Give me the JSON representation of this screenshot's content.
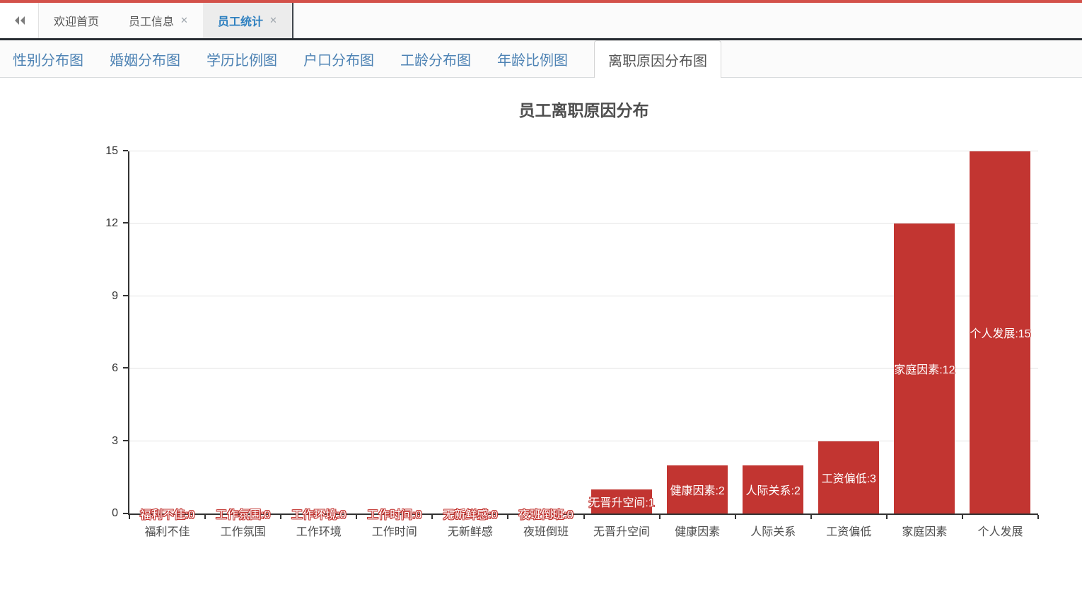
{
  "colors": {
    "accent_strip": "#d3514a",
    "active_tab_text": "#2e80c0",
    "nav_link": "#4e83b4",
    "bar": "#c23531"
  },
  "window_tabs": {
    "scroll_left_icon": "double-chevron-left",
    "close_icon": "✕",
    "tabs": [
      {
        "label": "欢迎首页",
        "closable": false,
        "active": false
      },
      {
        "label": "员工信息",
        "closable": true,
        "active": false
      },
      {
        "label": "员工统计",
        "closable": true,
        "active": true
      }
    ]
  },
  "chart_nav": {
    "items": [
      {
        "label": "性别分布图",
        "active": false
      },
      {
        "label": "婚姻分布图",
        "active": false
      },
      {
        "label": "学历比例图",
        "active": false
      },
      {
        "label": "户口分布图",
        "active": false
      },
      {
        "label": "工龄分布图",
        "active": false
      },
      {
        "label": "年龄比例图",
        "active": false
      },
      {
        "label": "离职原因分布图",
        "active": true
      }
    ]
  },
  "chart_data": {
    "type": "bar",
    "title": "员工离职原因分布",
    "categories": [
      "福利不佳",
      "工作氛围",
      "工作环境",
      "工作时间",
      "无新鲜感",
      "夜班倒班",
      "无晋升空间",
      "健康因素",
      "人际关系",
      "工资偏低",
      "家庭因素",
      "个人发展"
    ],
    "values": [
      0,
      0,
      0,
      0,
      0,
      0,
      1,
      2,
      2,
      3,
      12,
      15
    ],
    "bar_labels": [
      "福利不佳:0",
      "工作氛围:0",
      "工作环境:0",
      "工作时间:0",
      "无新鲜感:0",
      "夜班倒班:0",
      "无晋升空间:1",
      "健康因素:2",
      "人际关系:2",
      "工资偏低:3",
      "家庭因素:12",
      "个人发展:15"
    ],
    "xlabel": "",
    "ylabel": "",
    "ylim": [
      0,
      15
    ],
    "yticks": [
      0,
      3,
      6,
      9,
      12,
      15
    ],
    "grid": true,
    "legend": false,
    "bar_color": "#c23531",
    "label_color": "#ffffff",
    "label_outline_color": "#c23531"
  }
}
